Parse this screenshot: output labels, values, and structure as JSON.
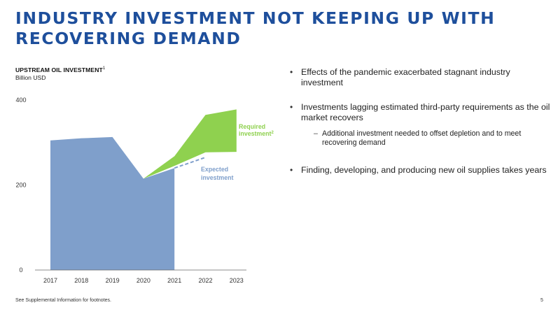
{
  "page": {
    "title": "INDUSTRY INVESTMENT NOT KEEPING UP WITH RECOVERING DEMAND",
    "footer_note": "See Supplemental Information for footnotes.",
    "page_number": "5"
  },
  "bullets": [
    {
      "text": "Effects of the pandemic exacerbated stagnant industry investment",
      "sub": []
    },
    {
      "text": "Investments lagging estimated third-party requirements as the oil market recovers",
      "sub": [
        "Additional investment needed to offset depletion and to meet recovering demand"
      ]
    },
    {
      "text": "Finding, developing, and producing new oil supplies takes years",
      "sub": []
    }
  ],
  "chart_data": {
    "type": "area",
    "title": "UPSTREAM OIL INVESTMENT",
    "title_footnote": "1",
    "subtitle": "Billion USD",
    "x": [
      "2017",
      "2018",
      "2019",
      "2020",
      "2021",
      "2022",
      "2023"
    ],
    "yticks": [
      "0",
      "200",
      "400"
    ],
    "ylim": [
      0,
      400
    ],
    "grid": false,
    "series": [
      {
        "name": "",
        "type": "area",
        "color": "#7f9fcb",
        "values": [
          305,
          310,
          313,
          215,
          240,
          null,
          null
        ]
      },
      {
        "name": "Expected investment",
        "type": "dashed-line",
        "color": "#7f9fcb",
        "values": [
          null,
          null,
          null,
          null,
          240,
          265,
          null
        ]
      },
      {
        "name": "Required investment",
        "footnote": "2",
        "type": "band",
        "color": "#8fd14f",
        "lower": [
          null,
          null,
          null,
          215,
          245,
          277,
          278
        ],
        "upper": [
          null,
          null,
          null,
          215,
          268,
          365,
          378
        ]
      }
    ],
    "annotations": [
      {
        "text": "Required",
        "line2": "investment",
        "footnote": "2",
        "color": "#8fd14f"
      },
      {
        "text": "Expected",
        "line2": "investment",
        "color": "#7f9fcb"
      }
    ]
  }
}
